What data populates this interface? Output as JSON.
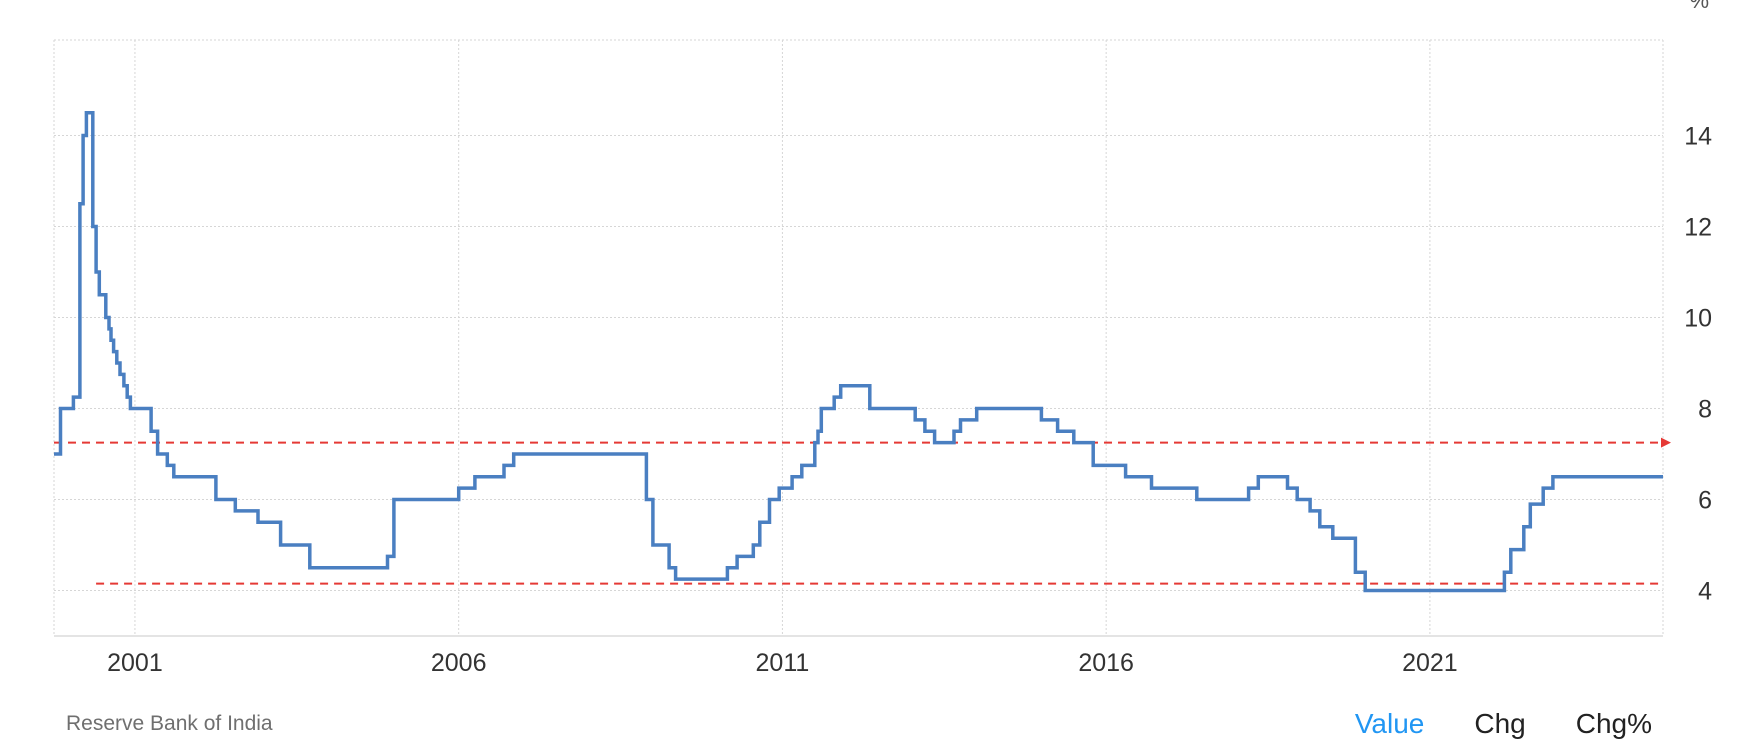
{
  "chart_data": {
    "type": "line",
    "unit": "%",
    "xlim": [
      1999.95,
      2024.8
    ],
    "ylim": [
      3.0,
      16.1
    ],
    "x_ticks": [
      {
        "x": 2001.2,
        "label": "2001"
      },
      {
        "x": 2006.2,
        "label": "2006"
      },
      {
        "x": 2011.2,
        "label": "2011"
      },
      {
        "x": 2016.2,
        "label": "2016"
      },
      {
        "x": 2021.2,
        "label": "2021"
      }
    ],
    "y_ticks": [
      4,
      6,
      8,
      10,
      12,
      14
    ],
    "grid": true,
    "line_color": "#4a7fc1",
    "reference_lines": [
      {
        "value": 7.25,
        "x_start": 1999.95,
        "color": "#e53935",
        "style": "dashed",
        "arrow": true
      },
      {
        "value": 4.15,
        "x_start": 2000.6,
        "color": "#e53935",
        "style": "dashed"
      }
    ],
    "series": [
      {
        "step": true,
        "points": [
          [
            1999.95,
            7.0
          ],
          [
            2000.05,
            8.0
          ],
          [
            2000.25,
            8.25
          ],
          [
            2000.35,
            12.5
          ],
          [
            2000.4,
            14.0
          ],
          [
            2000.45,
            14.5
          ],
          [
            2000.55,
            12.0
          ],
          [
            2000.6,
            11.0
          ],
          [
            2000.65,
            10.5
          ],
          [
            2000.75,
            10.0
          ],
          [
            2000.8,
            9.75
          ],
          [
            2000.83,
            9.5
          ],
          [
            2000.87,
            9.25
          ],
          [
            2000.92,
            9.0
          ],
          [
            2000.97,
            8.75
          ],
          [
            2001.03,
            8.5
          ],
          [
            2001.08,
            8.25
          ],
          [
            2001.13,
            8.0
          ],
          [
            2001.45,
            7.5
          ],
          [
            2001.55,
            7.0
          ],
          [
            2001.7,
            6.75
          ],
          [
            2001.8,
            6.5
          ],
          [
            2002.45,
            6.0
          ],
          [
            2002.75,
            5.75
          ],
          [
            2003.1,
            5.5
          ],
          [
            2003.45,
            5.0
          ],
          [
            2003.9,
            4.5
          ],
          [
            2005.1,
            4.75
          ],
          [
            2005.2,
            6.0
          ],
          [
            2006.2,
            6.25
          ],
          [
            2006.45,
            6.5
          ],
          [
            2006.9,
            6.75
          ],
          [
            2007.05,
            7.0
          ],
          [
            2009.1,
            6.0
          ],
          [
            2009.2,
            5.0
          ],
          [
            2009.45,
            4.5
          ],
          [
            2009.55,
            4.25
          ],
          [
            2010.35,
            4.5
          ],
          [
            2010.5,
            4.75
          ],
          [
            2010.75,
            5.0
          ],
          [
            2010.85,
            5.5
          ],
          [
            2011.0,
            6.0
          ],
          [
            2011.15,
            6.25
          ],
          [
            2011.35,
            6.5
          ],
          [
            2011.5,
            6.75
          ],
          [
            2011.7,
            7.25
          ],
          [
            2011.75,
            7.5
          ],
          [
            2011.8,
            8.0
          ],
          [
            2012.0,
            8.25
          ],
          [
            2012.1,
            8.5
          ],
          [
            2012.55,
            8.0
          ],
          [
            2013.25,
            7.75
          ],
          [
            2013.4,
            7.5
          ],
          [
            2013.55,
            7.25
          ],
          [
            2013.85,
            7.5
          ],
          [
            2013.95,
            7.75
          ],
          [
            2014.2,
            8.0
          ],
          [
            2015.2,
            7.75
          ],
          [
            2015.45,
            7.5
          ],
          [
            2015.7,
            7.25
          ],
          [
            2016.0,
            6.75
          ],
          [
            2016.5,
            6.5
          ],
          [
            2016.9,
            6.25
          ],
          [
            2017.6,
            6.0
          ],
          [
            2018.4,
            6.25
          ],
          [
            2018.55,
            6.5
          ],
          [
            2019.0,
            6.25
          ],
          [
            2019.15,
            6.0
          ],
          [
            2019.35,
            5.75
          ],
          [
            2019.5,
            5.4
          ],
          [
            2019.7,
            5.15
          ],
          [
            2020.05,
            4.4
          ],
          [
            2020.2,
            4.0
          ],
          [
            2022.35,
            4.4
          ],
          [
            2022.45,
            4.9
          ],
          [
            2022.65,
            5.4
          ],
          [
            2022.75,
            5.9
          ],
          [
            2022.95,
            6.25
          ],
          [
            2023.1,
            6.5
          ],
          [
            2024.8,
            6.5
          ]
        ]
      }
    ]
  },
  "source_label": "Reserve Bank of India",
  "tabs": [
    {
      "label": "Value",
      "active": true
    },
    {
      "label": "Chg",
      "active": false
    },
    {
      "label": "Chg%",
      "active": false
    }
  ]
}
